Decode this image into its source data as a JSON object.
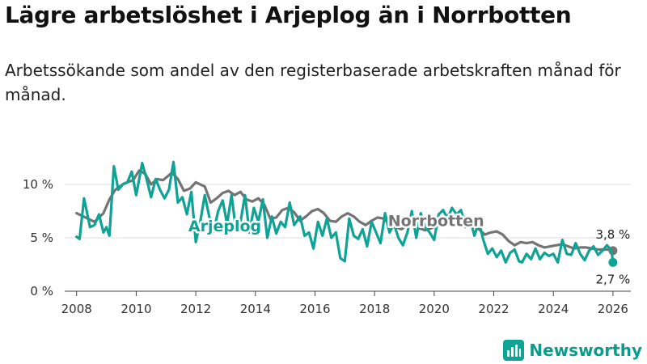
{
  "title": "Lägre arbetslöshet i Arjeplog än i Norrbotten",
  "subtitle": "Arbetssökande som andel av den registerbaserade arbetskraften månad för månad.",
  "brand": {
    "name": "Newsworthy",
    "icon": "newsworthy-logo-icon"
  },
  "colors": {
    "arjeplog": "#0fa396",
    "norrbotten": "#747474",
    "grid": "#dddddd",
    "axis": "#444444"
  },
  "chart_data": {
    "type": "line",
    "title": "Lägre arbetslöshet i Arjeplog än i Norrbotten",
    "xlabel": "",
    "ylabel": "",
    "xlim": [
      2007.6,
      2026.6
    ],
    "ylim": [
      0,
      12.5
    ],
    "x_ticks": [
      2008,
      2010,
      2012,
      2014,
      2016,
      2018,
      2020,
      2022,
      2024,
      2026
    ],
    "x_tick_labels": [
      "2008",
      "2010",
      "2012",
      "2014",
      "2016",
      "2018",
      "2020",
      "2022",
      "2024",
      "2026"
    ],
    "y_ticks": [
      0,
      5,
      10
    ],
    "y_tick_labels": [
      "0 %",
      "5 %",
      "10 %"
    ],
    "grid": true,
    "series": [
      {
        "name": "Norrbotten",
        "label": "Norrbotten",
        "color": "#747474",
        "end_label": "3,8 %",
        "end_value": 3.8,
        "points": [
          [
            2008.0,
            7.3
          ],
          [
            2008.3,
            6.9
          ],
          [
            2008.6,
            6.5
          ],
          [
            2008.9,
            7.3
          ],
          [
            2009.1,
            8.6
          ],
          [
            2009.3,
            9.5
          ],
          [
            2009.6,
            10.1
          ],
          [
            2009.9,
            10.4
          ],
          [
            2010.1,
            11.3
          ],
          [
            2010.3,
            11.0
          ],
          [
            2010.5,
            10.0
          ],
          [
            2010.7,
            10.5
          ],
          [
            2010.9,
            10.4
          ],
          [
            2011.2,
            11.1
          ],
          [
            2011.4,
            10.5
          ],
          [
            2011.6,
            9.4
          ],
          [
            2011.8,
            9.6
          ],
          [
            2012.0,
            10.2
          ],
          [
            2012.3,
            9.8
          ],
          [
            2012.5,
            8.3
          ],
          [
            2012.7,
            8.7
          ],
          [
            2012.9,
            9.2
          ],
          [
            2013.1,
            9.4
          ],
          [
            2013.3,
            9.0
          ],
          [
            2013.5,
            9.3
          ],
          [
            2013.7,
            8.6
          ],
          [
            2013.9,
            8.4
          ],
          [
            2014.1,
            8.7
          ],
          [
            2014.3,
            8.1
          ],
          [
            2014.5,
            6.8
          ],
          [
            2014.7,
            6.9
          ],
          [
            2014.9,
            7.6
          ],
          [
            2015.1,
            7.8
          ],
          [
            2015.3,
            7.4
          ],
          [
            2015.5,
            6.6
          ],
          [
            2015.7,
            7.0
          ],
          [
            2015.9,
            7.5
          ],
          [
            2016.1,
            7.7
          ],
          [
            2016.3,
            7.3
          ],
          [
            2016.5,
            6.6
          ],
          [
            2016.7,
            6.5
          ],
          [
            2016.9,
            7.0
          ],
          [
            2017.1,
            7.3
          ],
          [
            2017.3,
            7.0
          ],
          [
            2017.5,
            6.5
          ],
          [
            2017.7,
            6.2
          ],
          [
            2017.9,
            6.6
          ],
          [
            2018.1,
            6.9
          ],
          [
            2018.3,
            6.8
          ],
          [
            2018.5,
            6.3
          ],
          [
            2018.7,
            6.0
          ],
          [
            2018.9,
            5.8
          ],
          [
            2019.1,
            6.2
          ],
          [
            2019.3,
            6.3
          ],
          [
            2019.5,
            5.9
          ],
          [
            2019.7,
            5.7
          ],
          [
            2019.9,
            5.9
          ],
          [
            2020.1,
            6.1
          ],
          [
            2020.3,
            6.8
          ],
          [
            2020.5,
            7.2
          ],
          [
            2020.7,
            6.9
          ],
          [
            2020.9,
            7.1
          ],
          [
            2021.1,
            6.8
          ],
          [
            2021.3,
            6.2
          ],
          [
            2021.5,
            5.8
          ],
          [
            2021.7,
            5.3
          ],
          [
            2021.9,
            5.5
          ],
          [
            2022.1,
            5.6
          ],
          [
            2022.3,
            5.3
          ],
          [
            2022.5,
            4.7
          ],
          [
            2022.7,
            4.3
          ],
          [
            2022.9,
            4.6
          ],
          [
            2023.1,
            4.5
          ],
          [
            2023.3,
            4.6
          ],
          [
            2023.5,
            4.3
          ],
          [
            2023.7,
            4.1
          ],
          [
            2023.9,
            4.2
          ],
          [
            2024.1,
            4.3
          ],
          [
            2024.3,
            4.4
          ],
          [
            2024.5,
            4.2
          ],
          [
            2024.7,
            4.0
          ],
          [
            2024.9,
            4.1
          ],
          [
            2025.1,
            4.1
          ],
          [
            2025.3,
            4.0
          ],
          [
            2025.5,
            3.9
          ],
          [
            2025.7,
            3.9
          ],
          [
            2025.9,
            3.9
          ],
          [
            2026.0,
            3.8
          ]
        ]
      },
      {
        "name": "Arjeplog",
        "label": "Arjeplog",
        "color": "#0fa396",
        "end_label": "2,7 %",
        "end_value": 2.7,
        "points": [
          [
            2008.0,
            5.1
          ],
          [
            2008.1,
            4.9
          ],
          [
            2008.25,
            8.7
          ],
          [
            2008.45,
            6.0
          ],
          [
            2008.6,
            6.2
          ],
          [
            2008.75,
            7.2
          ],
          [
            2008.9,
            5.5
          ],
          [
            2009.0,
            6.0
          ],
          [
            2009.1,
            5.2
          ],
          [
            2009.25,
            11.7
          ],
          [
            2009.4,
            9.5
          ],
          [
            2009.55,
            10.0
          ],
          [
            2009.7,
            10.2
          ],
          [
            2009.85,
            11.2
          ],
          [
            2010.0,
            9.0
          ],
          [
            2010.2,
            12.0
          ],
          [
            2010.35,
            10.5
          ],
          [
            2010.5,
            8.8
          ],
          [
            2010.65,
            10.5
          ],
          [
            2010.8,
            9.5
          ],
          [
            2010.95,
            8.7
          ],
          [
            2011.1,
            9.5
          ],
          [
            2011.25,
            12.1
          ],
          [
            2011.4,
            8.3
          ],
          [
            2011.55,
            8.8
          ],
          [
            2011.7,
            7.2
          ],
          [
            2011.85,
            9.3
          ],
          [
            2012.0,
            4.6
          ],
          [
            2012.15,
            6.5
          ],
          [
            2012.3,
            9.0
          ],
          [
            2012.45,
            7.0
          ],
          [
            2012.6,
            5.6
          ],
          [
            2012.75,
            7.5
          ],
          [
            2012.9,
            8.5
          ],
          [
            2013.05,
            6.3
          ],
          [
            2013.2,
            9.0
          ],
          [
            2013.35,
            5.7
          ],
          [
            2013.5,
            6.5
          ],
          [
            2013.65,
            9.0
          ],
          [
            2013.8,
            5.5
          ],
          [
            2013.95,
            7.8
          ],
          [
            2014.1,
            6.5
          ],
          [
            2014.25,
            8.6
          ],
          [
            2014.4,
            5.0
          ],
          [
            2014.55,
            7.0
          ],
          [
            2014.7,
            5.4
          ],
          [
            2014.85,
            6.5
          ],
          [
            2015.0,
            6.0
          ],
          [
            2015.15,
            8.3
          ],
          [
            2015.3,
            6.2
          ],
          [
            2015.5,
            7.0
          ],
          [
            2015.65,
            5.2
          ],
          [
            2015.8,
            5.5
          ],
          [
            2015.95,
            4.0
          ],
          [
            2016.1,
            6.5
          ],
          [
            2016.25,
            5.2
          ],
          [
            2016.4,
            6.8
          ],
          [
            2016.55,
            5.0
          ],
          [
            2016.7,
            5.5
          ],
          [
            2016.85,
            3.1
          ],
          [
            2017.0,
            2.8
          ],
          [
            2017.15,
            6.8
          ],
          [
            2017.3,
            5.2
          ],
          [
            2017.45,
            4.9
          ],
          [
            2017.6,
            5.8
          ],
          [
            2017.75,
            4.2
          ],
          [
            2017.9,
            6.5
          ],
          [
            2018.05,
            5.5
          ],
          [
            2018.2,
            4.5
          ],
          [
            2018.35,
            7.3
          ],
          [
            2018.5,
            5.5
          ],
          [
            2018.65,
            6.3
          ],
          [
            2018.8,
            5.0
          ],
          [
            2018.95,
            4.3
          ],
          [
            2019.1,
            5.5
          ],
          [
            2019.25,
            7.5
          ],
          [
            2019.4,
            5.0
          ],
          [
            2019.55,
            7.3
          ],
          [
            2019.7,
            6.0
          ],
          [
            2019.85,
            5.5
          ],
          [
            2020.0,
            4.8
          ],
          [
            2020.15,
            7.2
          ],
          [
            2020.3,
            7.6
          ],
          [
            2020.45,
            6.8
          ],
          [
            2020.6,
            7.8
          ],
          [
            2020.75,
            7.2
          ],
          [
            2020.9,
            7.6
          ],
          [
            2021.05,
            6.0
          ],
          [
            2021.2,
            6.8
          ],
          [
            2021.35,
            5.2
          ],
          [
            2021.5,
            6.5
          ],
          [
            2021.65,
            4.8
          ],
          [
            2021.8,
            3.5
          ],
          [
            2021.95,
            4.0
          ],
          [
            2022.1,
            3.2
          ],
          [
            2022.25,
            3.8
          ],
          [
            2022.4,
            2.7
          ],
          [
            2022.55,
            3.6
          ],
          [
            2022.7,
            3.9
          ],
          [
            2022.85,
            2.8
          ],
          [
            2022.95,
            2.7
          ],
          [
            2023.1,
            3.5
          ],
          [
            2023.25,
            3.0
          ],
          [
            2023.4,
            4.0
          ],
          [
            2023.55,
            3.0
          ],
          [
            2023.7,
            3.6
          ],
          [
            2023.85,
            3.3
          ],
          [
            2024.0,
            3.5
          ],
          [
            2024.15,
            2.7
          ],
          [
            2024.3,
            4.8
          ],
          [
            2024.45,
            3.5
          ],
          [
            2024.6,
            3.4
          ],
          [
            2024.75,
            4.5
          ],
          [
            2024.9,
            3.5
          ],
          [
            2025.05,
            2.9
          ],
          [
            2025.2,
            3.8
          ],
          [
            2025.35,
            4.2
          ],
          [
            2025.5,
            3.4
          ],
          [
            2025.65,
            3.8
          ],
          [
            2025.8,
            4.3
          ],
          [
            2025.95,
            3.8
          ],
          [
            2026.0,
            2.7
          ]
        ]
      }
    ]
  }
}
